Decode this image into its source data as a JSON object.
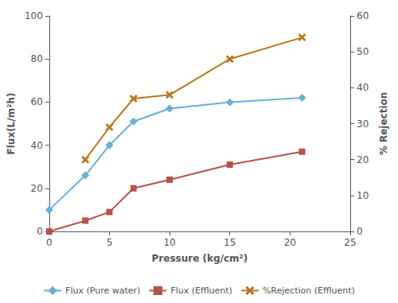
{
  "chart_data": {
    "type": "line",
    "xlabel": "Pressure (kg/cm²)",
    "ylabel": "Flux(L/m²h)",
    "y2label": "% Rejection",
    "xlim": [
      0,
      25
    ],
    "xticks": [
      0,
      5,
      10,
      15,
      20,
      25
    ],
    "ylim": [
      0,
      100
    ],
    "yticks": [
      0,
      20,
      40,
      60,
      80,
      100
    ],
    "y2lim": [
      0,
      60
    ],
    "y2ticks": [
      0,
      10,
      20,
      30,
      40,
      50,
      60
    ],
    "grid": false,
    "legend": "bottom",
    "series": [
      {
        "name": "Flux (Pure water)",
        "color": "#6baed6",
        "marker": "diamond",
        "x": [
          0,
          3,
          5,
          7,
          10,
          15,
          21
        ],
        "values": [
          10,
          26,
          40,
          51,
          57,
          60,
          62
        ]
      },
      {
        "name": "Flux (Effluent)",
        "color": "#b5534a",
        "marker": "square",
        "x": [
          0,
          3,
          5,
          7,
          10,
          15,
          21
        ],
        "values": [
          0,
          5,
          9,
          20,
          24,
          31,
          37
        ]
      },
      {
        "name": "%Rejection (Effluent)",
        "color": "#b87820",
        "marker": "x",
        "axis": "y2",
        "x": [
          3,
          5,
          7,
          10,
          15,
          21
        ],
        "values": [
          20,
          29,
          37,
          38,
          48,
          54
        ]
      }
    ]
  }
}
